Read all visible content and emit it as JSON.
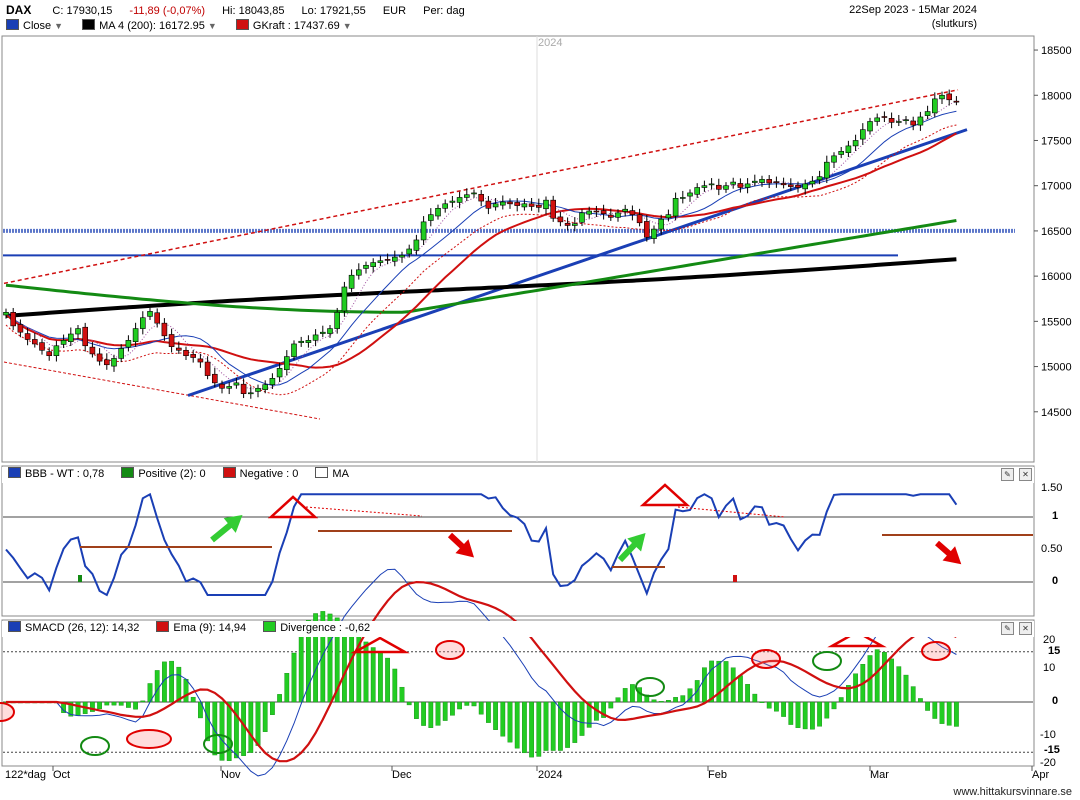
{
  "header": {
    "symbol": "DAX",
    "close": "C: 17930,15",
    "change": "-11,89 (-0,07%)",
    "high": "Hi: 18043,85",
    "low": "Lo: 17921,55",
    "currency": "EUR",
    "period": "Per: dag",
    "date_range": "22Sep 2023 - 15Mar 2024",
    "price_type": "(slutkurs)",
    "legend": [
      {
        "label": "Close",
        "color": "#1a3fb5"
      },
      {
        "label": "MA 4 (200): 16172.95",
        "color": "#000000"
      },
      {
        "label": "GKraft : 17437.69",
        "color": "#d01010"
      }
    ]
  },
  "year_label": "2024",
  "bbb_panel": {
    "legend": [
      {
        "label": "BBB - WT : 0,78",
        "color": "#1a3fb5"
      },
      {
        "label": "Positive (2): 0",
        "color": "#138a13"
      },
      {
        "label": "Negative : 0",
        "color": "#d01010"
      },
      {
        "label": "MA",
        "color": "#ffffff"
      }
    ],
    "axis_labels": [
      "1.50",
      "1",
      "0.50",
      "0"
    ],
    "current_label": "1",
    "zero_label": "0"
  },
  "smacd_panel": {
    "legend": [
      {
        "label": "SMACD (26, 12): 14,32",
        "color": "#1a3fb5"
      },
      {
        "label": "Ema (9): 14,94",
        "color": "#d01010"
      },
      {
        "label": "Divergence : -0,62",
        "color": "#22cc22"
      }
    ],
    "axis_labels": [
      "20",
      "10",
      "-10",
      "-20"
    ],
    "current_label": "15",
    "zero_label": "0",
    "neg_label": "-15"
  },
  "x_axis": {
    "lead": "122*dag",
    "months": [
      "Oct",
      "Nov",
      "Dec",
      "2024",
      "Feb",
      "Mar",
      "Apr"
    ]
  },
  "footer": "www.hittakursvinnare.se",
  "chart_data": {
    "type": "line",
    "title": "DAX",
    "ylim": [
      14000,
      18600
    ],
    "y_ticks": [
      14500,
      15000,
      15500,
      16000,
      16500,
      17000,
      17500,
      18000,
      18500
    ],
    "close": [
      15600,
      15450,
      15380,
      15300,
      15250,
      15180,
      15120,
      15230,
      15290,
      15360,
      15420,
      15230,
      15140,
      15060,
      15020,
      15090,
      15200,
      15290,
      15420,
      15540,
      15610,
      15480,
      15340,
      15220,
      15180,
      15120,
      15100,
      15050,
      14900,
      14820,
      14760,
      14780,
      14820,
      14700,
      14710,
      14760,
      14800,
      14870,
      14980,
      15110,
      15250,
      15280,
      15290,
      15350,
      15380,
      15420,
      15600,
      15880,
      16010,
      16070,
      16120,
      16150,
      16170,
      16180,
      16210,
      16230,
      16300,
      16400,
      16600,
      16680,
      16750,
      16800,
      16830,
      16870,
      16900,
      16920,
      16830,
      16750,
      16800,
      16820,
      16800,
      16780,
      16800,
      16770,
      16760,
      16840,
      16640,
      16600,
      16560,
      16580,
      16700,
      16720,
      16710,
      16690,
      16650,
      16700,
      16740,
      16680,
      16590,
      16430,
      16520,
      16630,
      16680,
      16860,
      16870,
      16920,
      16980,
      17000,
      17020,
      16960,
      17000,
      17040,
      16980,
      17020,
      17050,
      17070,
      17030,
      17040,
      17010,
      16990,
      16980,
      17020,
      17050,
      17100,
      17260,
      17330,
      17380,
      17440,
      17500,
      17620,
      17710,
      17750,
      17760,
      17700,
      17710,
      17730,
      17670,
      17760,
      17820,
      17960,
      18000,
      17950,
      17930
    ],
    "series_colors": {
      "close": "#1a3fb5",
      "ma200": "#000000",
      "gkraft": "#d01010",
      "ma50": "#138a13"
    }
  }
}
